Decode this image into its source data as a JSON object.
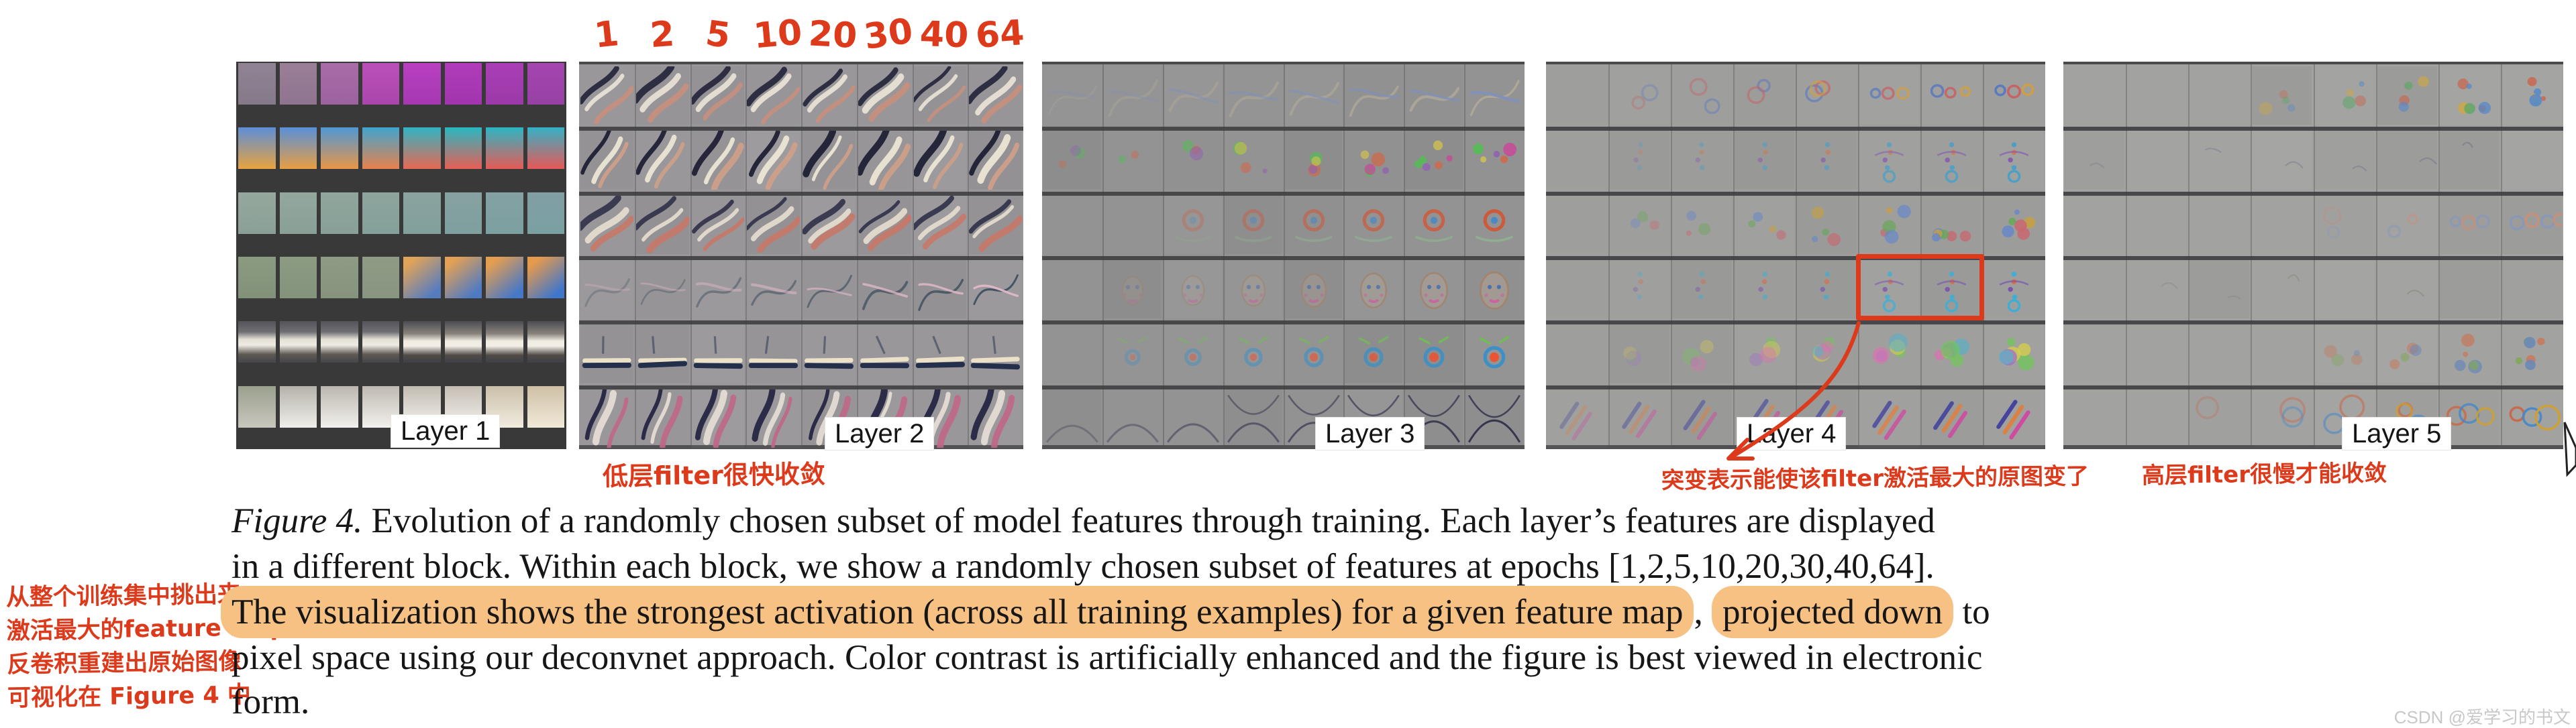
{
  "figure": {
    "layers": [
      {
        "label": "Layer 1"
      },
      {
        "label": "Layer 2"
      },
      {
        "label": "Layer 3"
      },
      {
        "label": "Layer 4"
      },
      {
        "label": "Layer 5"
      }
    ],
    "epoch_ticks": [
      "1",
      "2",
      "5",
      "10",
      "20",
      "30",
      "40",
      "64"
    ],
    "blocks": [
      {
        "name": "layer1-grid",
        "kind": "l1",
        "bg": "#39393a",
        "tiles_rows": [
          [
            "v|#8f8394|#857a8a",
            "v|#9b7f98|#8f7490",
            "v|#a96ca8|#9c62a0",
            "v|#bb4fb9|#aa46ac",
            "v|#b83fc0|#a638b2",
            "v|#b13bba|#a136ae",
            "v|#aa3eb6|#9b3aa8",
            "v|#a545b0|#9741a4"
          ],
          [
            "v|#5d8ed8|#e8a33e",
            "v|#5890d8|#e89e42",
            "v|#4f97d6|#e89646",
            "v|#40a4d0|#e8824c",
            "v|#30b4c4|#e86852",
            "v|#28b8c2|#e85e54",
            "v|#2cb5c4|#e85a56",
            "v|#34b1c6|#e85856"
          ],
          [
            "v|#95a89e|#8aa096",
            "v|#93a79d|#89a097",
            "v|#90a69c|#87a098",
            "v|#8da59d|#84a09a",
            "v|#8aa39f|#81a09c",
            "v|#87a1a1|#7ea09e",
            "v|#84a1a3|#7ca0a0",
            "v|#819fa5|#7aa0a2"
          ],
          [
            "v|#8a9b80|#82927a",
            "v|#8c9b82|#84937c",
            "v|#8e9b84|#86947e",
            "v|#909b86|#889580",
            "d|#e0a458|#567cc0",
            "d|#e2a154|#4e7ac4",
            "d|#e49e50|#4678c8",
            "d|#e69b4c|#3e76cc"
          ],
          [
            "b1",
            "b1",
            "b1",
            "b1",
            "b2",
            "b2",
            "b2",
            "b2"
          ],
          [
            "v|#9aa08e|#c9c7bd",
            "v|#b5b2aa|#efeeea",
            "v|#bbb7af|#f2f0ec",
            "v|#beb9b1|#f3f1ed",
            "v|#c2bcb2|#f4f2ee",
            "v|#c5beb4|#f4f2ee",
            "v|#cabfa9|#f2ecdf",
            "v|#cec0a6|#f1e9d8"
          ]
        ]
      },
      {
        "name": "layer2-grid",
        "kind": "marks",
        "bg": "#99979a",
        "rows": [
          {
            "p": "diag",
            "a": 50,
            "colors": [
              "#23233a",
              "#ece6d8",
              "#c8907e",
              "#8098c8"
            ],
            "ramp": false
          },
          {
            "p": "diag",
            "a": 35,
            "colors": [
              "#1a1a30",
              "#f0ead8",
              "#d0a088",
              "#7088c0"
            ],
            "ramp": false
          },
          {
            "p": "diag",
            "a": 55,
            "colors": [
              "#303048",
              "#e8e0d0",
              "#c87868",
              "#6888c8"
            ],
            "ramp": false
          },
          {
            "p": "curve",
            "colors": [
              "#405060",
              "#e0b8c8",
              "#60a078",
              "#8888c8"
            ]
          },
          {
            "p": "hstroke",
            "colors": [
              "#1e2a48",
              "#f0e6cc",
              "#d09060"
            ],
            "ramp": false
          },
          {
            "p": "diag",
            "a": 22,
            "colors": [
              "#202040",
              "#e8e0d8",
              "#c06888",
              "#5878c8"
            ],
            "ramp": false
          }
        ]
      },
      {
        "name": "layer3-grid",
        "kind": "marks",
        "bg": "#939394",
        "rows": [
          {
            "p": "curve",
            "colors": [
              "#b0a898",
              "#8090b8",
              "#c8b0a0",
              "#708858"
            ]
          },
          {
            "p": "blob",
            "colors": [
              "#50c050",
              "#d06848",
              "#9060b0",
              "#d0c050",
              "#c84898"
            ]
          },
          {
            "p": "eye",
            "colors": [
              "#d05838",
              "#4888c8",
              "#90b090"
            ],
            "from": 2
          },
          {
            "p": "face",
            "colors": [
              "#c09078",
              "#d060a0",
              "#4870b0"
            ],
            "from": 1
          },
          {
            "p": "dotring",
            "colors": [
              "#f05030",
              "#3890c8",
              "#70c050"
            ],
            "from": 1
          },
          {
            "p": "arcs",
            "colors": [
              "#30304a",
              "#d8d2c2"
            ]
          }
        ]
      },
      {
        "name": "layer4-grid",
        "kind": "marks",
        "bg": "#9e9e9d",
        "rows": [
          {
            "p": "rings",
            "colors": [
              "#5878c0",
              "#c86060",
              "#d0a040",
              "#50a878"
            ],
            "from": 1
          },
          {
            "p": "stem",
            "colors": [
              "#48a0c8",
              "#d07850",
              "#8858b0"
            ],
            "from": 1
          },
          {
            "p": "blob",
            "colors": [
              "#6888c8",
              "#c86870",
              "#68a858",
              "#c8a040"
            ],
            "from": 1
          },
          {
            "p": "stem",
            "colors": [
              "#38b0d8",
              "#e06840",
              "#7850b0"
            ],
            "from": 1
          },
          {
            "p": "cluster",
            "colors": [
              "#70c858",
              "#d8d048",
              "#a070c8",
              "#e070b0",
              "#58b0c8"
            ],
            "from": 1
          },
          {
            "p": "diagcolor",
            "colors": [
              "#4040a0",
              "#e08040",
              "#d048a0",
              "#40a0d0"
            ]
          }
        ]
      },
      {
        "name": "layer5-grid",
        "kind": "marks",
        "bg": "#a2a2a1",
        "rows": [
          {
            "p": "blob",
            "colors": [
              "#c86850",
              "#5888c8",
              "#d0a840",
              "#58a860"
            ],
            "from": 3
          },
          {
            "p": "sparse",
            "colors": [
              "#787888",
              "#a89888"
            ]
          },
          {
            "p": "rings",
            "colors": [
              "#8898b8",
              "#c89078"
            ],
            "from": 4
          },
          {
            "p": "sparse",
            "colors": [
              "#888878"
            ]
          },
          {
            "p": "blob",
            "colors": [
              "#c87858",
              "#6888b8",
              "#80a858"
            ],
            "from": 4
          },
          {
            "p": "rings",
            "colors": [
              "#c86848",
              "#4888c8",
              "#d0a030",
              "#50a070"
            ],
            "from": 2,
            "sz": 1.5
          }
        ]
      }
    ]
  },
  "annotations": {
    "red_color": "#dd3a1c",
    "note_layer2": "低层filter很快收敛",
    "note_layer4": "突变表示能使该filter激活最大的原图变了",
    "note_layer5": "高层filter很慢才能收敛",
    "left_note_lines": [
      "从整个训练集中挑出来",
      "激活最大的feature map",
      "反卷积重建出原始图像",
      "可视化在 Figure 4 中"
    ]
  },
  "caption": {
    "line1_prefix": "Figure 4.",
    "line1_rest": " Evolution of a randomly chosen subset of model features through training. Each layer’s features are displayed",
    "line2": "in a different block.  Within each block, we show a randomly chosen subset of features at epochs [1,2,5,10,20,30,40,64].",
    "line3_segments": [
      {
        "text": "The visualization shows the strongest activation (across all training examples) for a given feature map",
        "highlight": true
      },
      {
        "text": ", ",
        "highlight": false
      },
      {
        "text": "projected down",
        "highlight": true
      },
      {
        "text": " to",
        "highlight": false
      }
    ],
    "line4": "pixel space using our deconvnet approach. Color contrast is artificially enhanced and the figure is best viewed in electronic",
    "line5": "form.",
    "highlight_color": "#f7c183"
  },
  "watermark": "CSDN @爱学习的书文"
}
